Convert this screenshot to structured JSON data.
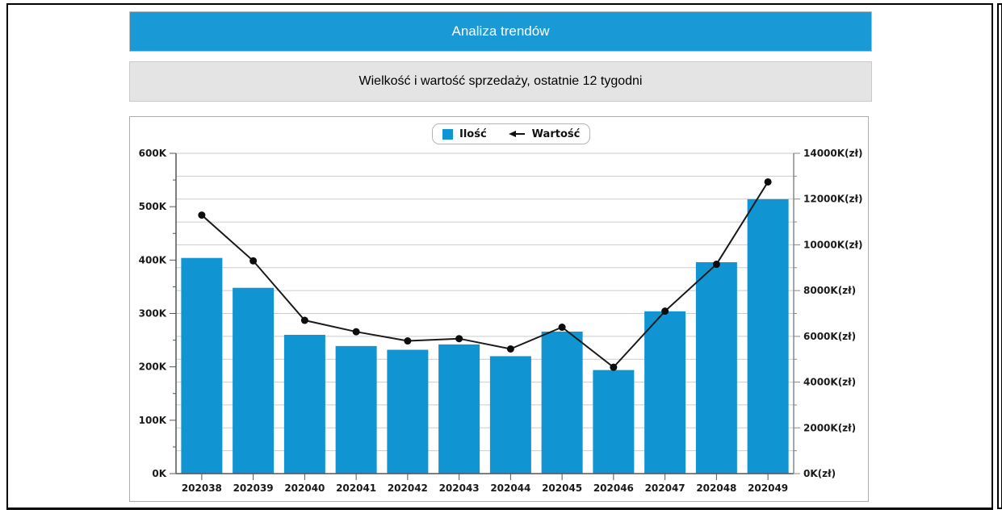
{
  "header": {
    "title": "Analiza trendów"
  },
  "subtitle": {
    "text": "Wielkość i wartość sprzedaży, ostatnie 12 tygodni"
  },
  "colors": {
    "header_bg": "#199AD6",
    "bar": "#1095D2",
    "line": "#1a1a1a",
    "grid": "#cbcbcb",
    "axis": "#555555",
    "right_axis": "#888888"
  },
  "chart_data": {
    "type": "bar",
    "subtype": "combo-bar-line-dual-axis",
    "categories": [
      "202038",
      "202039",
      "202040",
      "202041",
      "202042",
      "202043",
      "202044",
      "202045",
      "202046",
      "202047",
      "202048",
      "202049"
    ],
    "series": [
      {
        "name": "Ilość",
        "type": "bar",
        "axis": "left",
        "unit": "K",
        "values": [
          404,
          348,
          260,
          239,
          232,
          242,
          220,
          266,
          194,
          304,
          396,
          514
        ]
      },
      {
        "name": "Wartość",
        "type": "line",
        "axis": "right",
        "unit": "K(zł)",
        "values": [
          11300,
          9300,
          6700,
          6200,
          5800,
          5900,
          5450,
          6400,
          4650,
          7100,
          9150,
          12750
        ]
      }
    ],
    "left_axis": {
      "min": 0,
      "max": 600,
      "step": 100,
      "minor_step": 50,
      "labels": [
        "0K",
        "100K",
        "200K",
        "300K",
        "400K",
        "500K",
        "600K"
      ]
    },
    "right_axis": {
      "min": 0,
      "max": 14000,
      "step": 2000,
      "minor_step": 1000,
      "labels": [
        "0K(zł)",
        "2000K(zł)",
        "4000K(zł)",
        "6000K(zł)",
        "8000K(zł)",
        "10000K(zł)",
        "12000K(zł)",
        "14000K(zł)"
      ]
    },
    "legend_position": "top-center",
    "grid": true
  }
}
